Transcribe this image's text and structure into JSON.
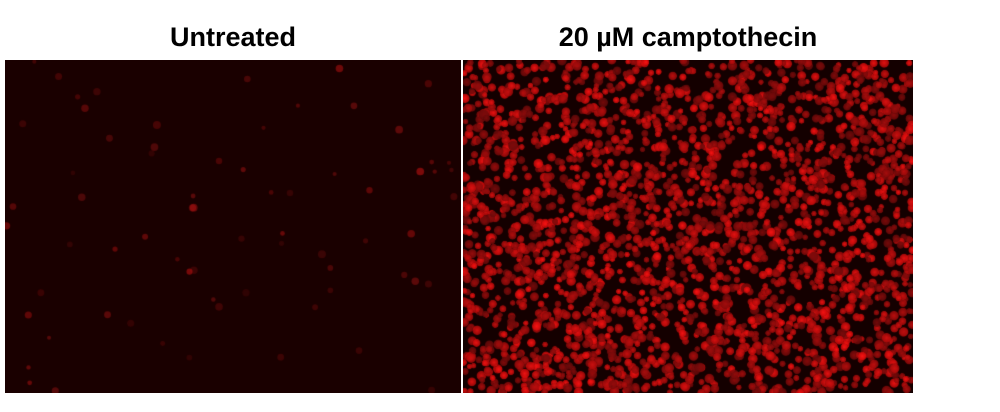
{
  "panels": [
    {
      "label": "Untreated",
      "signal": "sparse dim red fluorescence",
      "background": "#1a0000"
    },
    {
      "label": "20 µM camptothecin",
      "signal": "dense bright red nuclear fluorescence",
      "background": "#140000"
    }
  ],
  "colors": {
    "stain": "#e01010"
  }
}
